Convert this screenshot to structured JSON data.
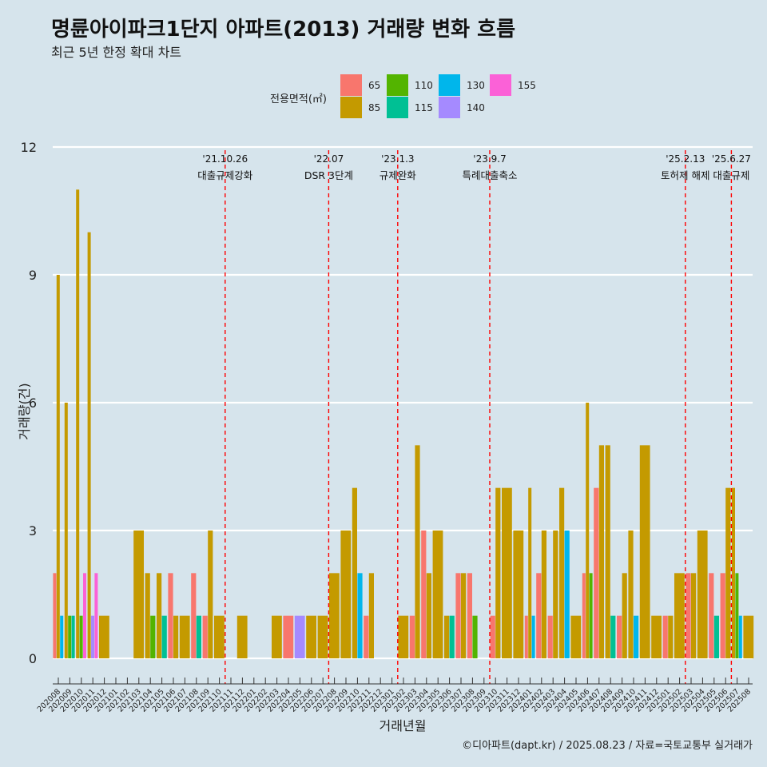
{
  "chart_data": {
    "type": "bar",
    "title": "명륜아이파크1단지 아파트(2013) 거래량 변화 흐름",
    "subtitle": "최근 5년 한정 확대 차트",
    "caption": "©디아파트(dapt.kr) / 2025.08.23 / 자료=국토교통부 실거래가",
    "xlabel": "거래년월",
    "ylabel": "거래량(건)",
    "ylim": [
      0,
      12
    ],
    "yticks": [
      "0",
      "3",
      "6",
      "9",
      "12"
    ],
    "grid": true,
    "legend_title": "전용면적(㎡)",
    "legend_position": "top",
    "series": [
      {
        "name": "65",
        "color": "#F8766D"
      },
      {
        "name": "85",
        "color": "#C49A00"
      },
      {
        "name": "110",
        "color": "#53B400"
      },
      {
        "name": "115",
        "color": "#00C094"
      },
      {
        "name": "130",
        "color": "#00B6EB"
      },
      {
        "name": "140",
        "color": "#A58AFF"
      },
      {
        "name": "155",
        "color": "#FB61D7"
      }
    ],
    "months": [
      "202008",
      "202009",
      "202010",
      "202011",
      "202012",
      "202101",
      "202102",
      "202103",
      "202104",
      "202105",
      "202106",
      "202107",
      "202108",
      "202109",
      "202110",
      "202111",
      "202112",
      "202201",
      "202202",
      "202203",
      "202204",
      "202205",
      "202206",
      "202207",
      "202208",
      "202209",
      "202210",
      "202211",
      "202212",
      "202301",
      "202302",
      "202303",
      "202304",
      "202305",
      "202306",
      "202307",
      "202308",
      "202309",
      "202310",
      "202311",
      "202312",
      "202401",
      "202402",
      "202403",
      "202404",
      "202405",
      "202406",
      "202407",
      "202408",
      "202409",
      "202410",
      "202411",
      "202412",
      "202501",
      "202502",
      "202503",
      "202504",
      "202505",
      "202506",
      "202507",
      "202508"
    ],
    "tick_labels": [
      "202008",
      "202009",
      "202010",
      "202011",
      "202012",
      "202101",
      "202102",
      "202103",
      "202104",
      "202105",
      "202106",
      "202107",
      "202108",
      "202109",
      "202110",
      "202111",
      "202112",
      "202201",
      "202202",
      "202203",
      "202204",
      "202205",
      "202206",
      "202207",
      "202208",
      "202209",
      "202210",
      "202211",
      "202212",
      "202301",
      "202302",
      "202303",
      "202304",
      "202305",
      "202306",
      "202307",
      "202308",
      "202309",
      "202310",
      "202311",
      "202312",
      "202401",
      "202402",
      "202403",
      "202404",
      "202405",
      "202406",
      "202407",
      "202408",
      "202409",
      "202410",
      "202411",
      "202412",
      "202501",
      "202502",
      "202503",
      "202504",
      "202505",
      "202506",
      "202507",
      "202508"
    ],
    "data": [
      {
        "month": "202008",
        "values": {
          "65": 2,
          "85": 9,
          "130": 1
        }
      },
      {
        "month": "202009",
        "values": {
          "85": 6,
          "110": 1,
          "115": 1
        }
      },
      {
        "month": "202010",
        "values": {
          "85": 11,
          "110": 1,
          "155": 2
        }
      },
      {
        "month": "202011",
        "values": {
          "85": 10,
          "140": 1,
          "155": 2
        }
      },
      {
        "month": "202012",
        "values": {
          "85": 1
        }
      },
      {
        "month": "202101",
        "values": {}
      },
      {
        "month": "202102",
        "values": {}
      },
      {
        "month": "202103",
        "values": {
          "85": 3
        }
      },
      {
        "month": "202104",
        "values": {
          "85": 2,
          "110": 1
        }
      },
      {
        "month": "202105",
        "values": {
          "85": 2,
          "115": 1
        }
      },
      {
        "month": "202106",
        "values": {
          "65": 2,
          "85": 1
        }
      },
      {
        "month": "202107",
        "values": {
          "85": 1
        }
      },
      {
        "month": "202108",
        "values": {
          "65": 2,
          "115": 1
        }
      },
      {
        "month": "202109",
        "values": {
          "65": 1,
          "85": 3
        }
      },
      {
        "month": "202110",
        "values": {
          "85": 1
        }
      },
      {
        "month": "202111",
        "values": {}
      },
      {
        "month": "202112",
        "values": {
          "85": 1
        }
      },
      {
        "month": "202201",
        "values": {}
      },
      {
        "month": "202202",
        "values": {}
      },
      {
        "month": "202203",
        "values": {
          "85": 1
        }
      },
      {
        "month": "202204",
        "values": {
          "65": 1
        }
      },
      {
        "month": "202205",
        "values": {
          "140": 1
        }
      },
      {
        "month": "202206",
        "values": {
          "85": 1
        }
      },
      {
        "month": "202207",
        "values": {
          "85": 1
        }
      },
      {
        "month": "202208",
        "values": {
          "85": 2
        }
      },
      {
        "month": "202209",
        "values": {
          "85": 3
        }
      },
      {
        "month": "202210",
        "values": {
          "85": 4,
          "130": 2
        }
      },
      {
        "month": "202211",
        "values": {
          "65": 1,
          "85": 2
        }
      },
      {
        "month": "202212",
        "values": {}
      },
      {
        "month": "202301",
        "values": {}
      },
      {
        "month": "202302",
        "values": {
          "85": 1
        }
      },
      {
        "month": "202303",
        "values": {
          "65": 1,
          "85": 5
        }
      },
      {
        "month": "202304",
        "values": {
          "65": 3,
          "85": 2
        }
      },
      {
        "month": "202305",
        "values": {
          "85": 3
        }
      },
      {
        "month": "202306",
        "values": {
          "85": 1,
          "115": 1
        }
      },
      {
        "month": "202307",
        "values": {
          "65": 2,
          "85": 2
        }
      },
      {
        "month": "202308",
        "values": {
          "65": 2,
          "110": 1
        }
      },
      {
        "month": "202309",
        "values": {}
      },
      {
        "month": "202310",
        "values": {
          "65": 1,
          "85": 4
        }
      },
      {
        "month": "202311",
        "values": {
          "85": 4
        }
      },
      {
        "month": "202312",
        "values": {
          "85": 3
        }
      },
      {
        "month": "202401",
        "values": {
          "65": 1,
          "85": 4,
          "130": 1
        }
      },
      {
        "month": "202402",
        "values": {
          "65": 2,
          "85": 3
        }
      },
      {
        "month": "202403",
        "values": {
          "65": 1,
          "85": 3
        }
      },
      {
        "month": "202404",
        "values": {
          "85": 4,
          "130": 3
        }
      },
      {
        "month": "202405",
        "values": {
          "85": 1
        }
      },
      {
        "month": "202406",
        "values": {
          "65": 2,
          "85": 6,
          "110": 2
        }
      },
      {
        "month": "202407",
        "values": {
          "65": 4,
          "85": 5
        }
      },
      {
        "month": "202408",
        "values": {
          "85": 5,
          "115": 1
        }
      },
      {
        "month": "202409",
        "values": {
          "65": 1,
          "85": 2
        }
      },
      {
        "month": "202410",
        "values": {
          "85": 3,
          "130": 1
        }
      },
      {
        "month": "202411",
        "values": {
          "85": 5
        }
      },
      {
        "month": "202412",
        "values": {
          "85": 1
        }
      },
      {
        "month": "202501",
        "values": {
          "65": 1,
          "85": 1
        }
      },
      {
        "month": "202502",
        "values": {
          "85": 2
        }
      },
      {
        "month": "202503",
        "values": {
          "65": 2,
          "85": 2
        }
      },
      {
        "month": "202504",
        "values": {
          "85": 3
        }
      },
      {
        "month": "202505",
        "values": {
          "65": 2,
          "115": 1
        }
      },
      {
        "month": "202506",
        "values": {
          "65": 2,
          "85": 4
        }
      },
      {
        "month": "202507",
        "values": {
          "85": 4,
          "110": 2,
          "130": 1
        }
      },
      {
        "month": "202508",
        "values": {
          "85": 1
        }
      }
    ],
    "events": [
      {
        "month": "202110",
        "date": "'21.10.26",
        "label": "대출규제강화"
      },
      {
        "month": "202207",
        "date": "'22.07",
        "label": "DSR 3단계"
      },
      {
        "month": "202301",
        "date": "'23.1.3",
        "label": "규제완화"
      },
      {
        "month": "202309",
        "date": "'23.9.7",
        "label": "특례대출축소"
      },
      {
        "month": "202502",
        "date": "'25.2.13",
        "label": "토허제 해제"
      },
      {
        "month": "202506",
        "date": "'25.6.27",
        "label": "대출규제"
      }
    ]
  },
  "colors": {
    "background": "#d6e4ec",
    "grid": "#ffffff",
    "event_line": "#ff0000"
  }
}
